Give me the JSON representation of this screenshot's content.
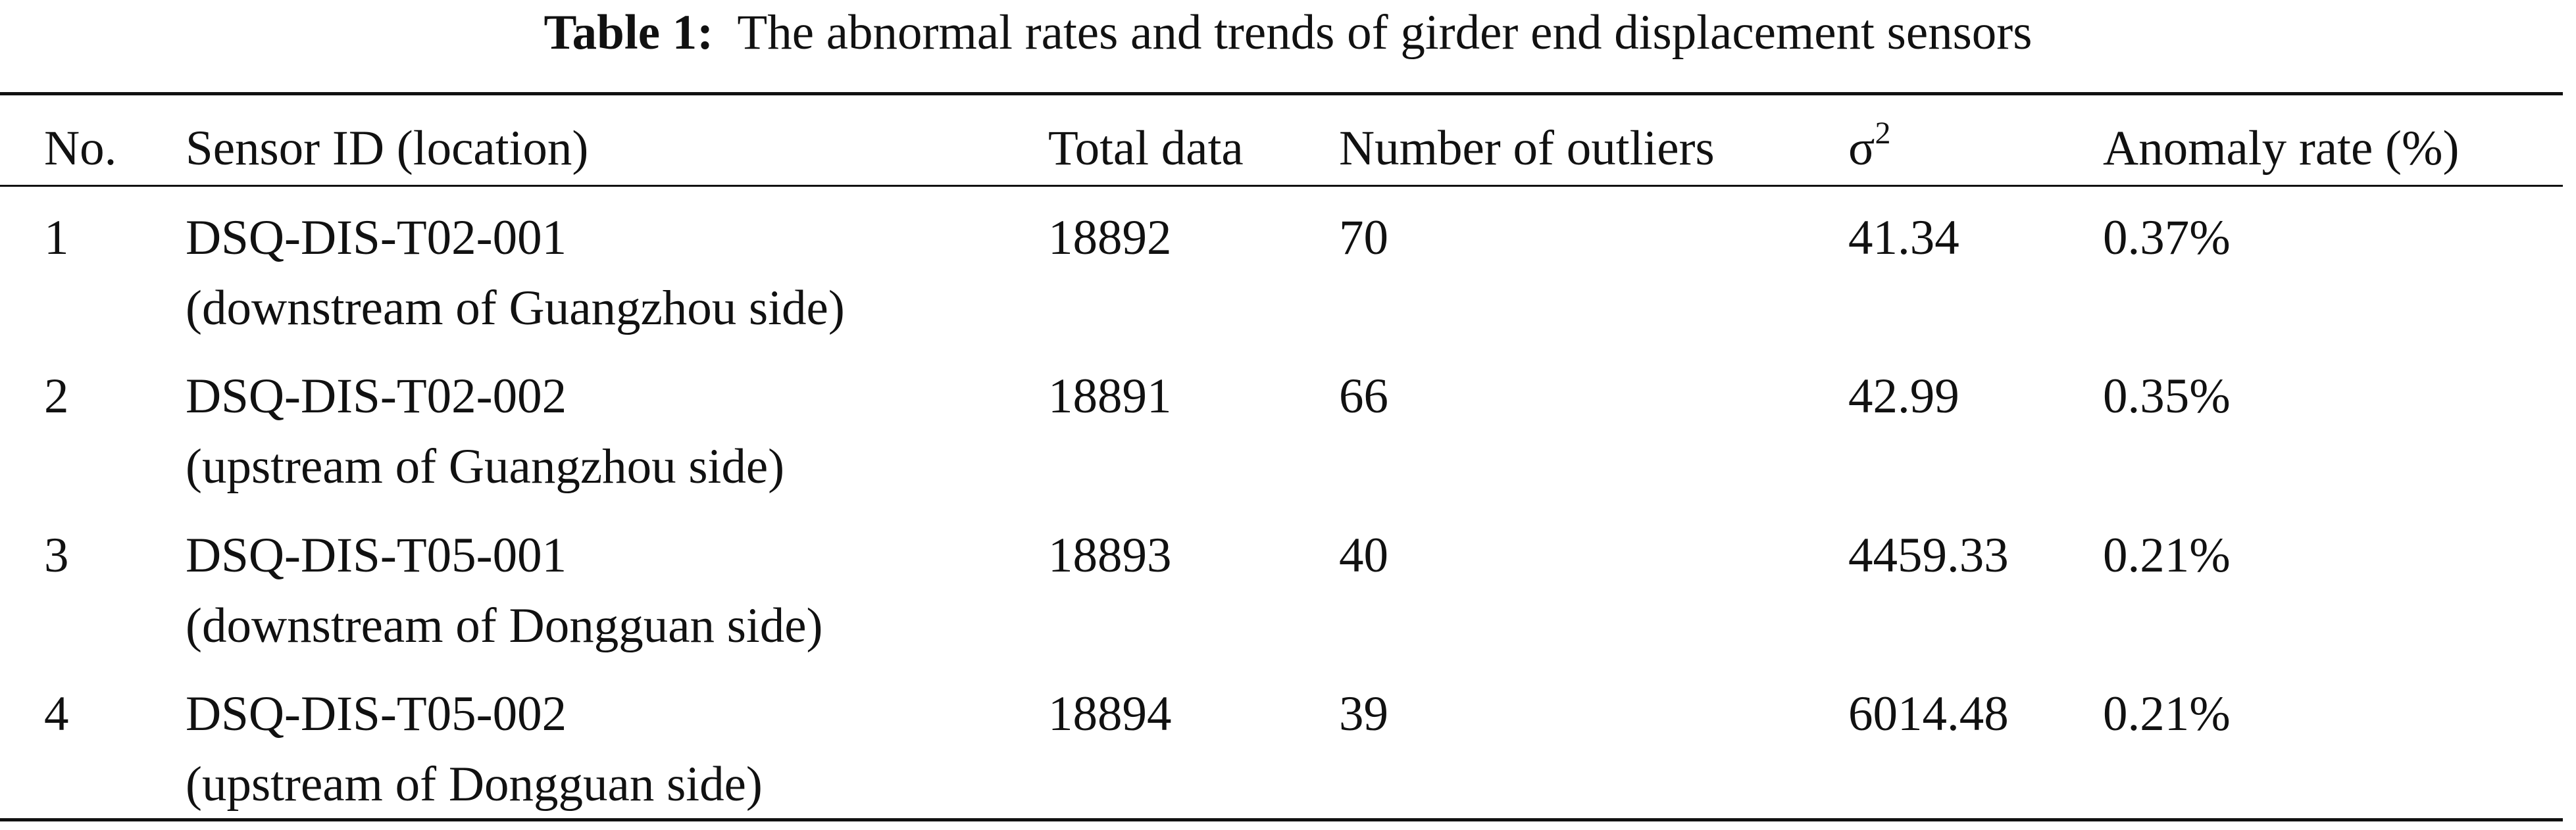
{
  "caption": {
    "label": "Table 1:",
    "title": "The abnormal rates and trends of girder end displacement sensors"
  },
  "table": {
    "header": [
      "No.",
      "Sensor ID (location)",
      "Total data",
      "Number of outliers",
      {
        "text": "σ",
        "sup": "2"
      },
      "Anomaly rate (%)"
    ],
    "rows": [
      {
        "no": "1",
        "sensor_id": "DSQ-DIS-T02-001",
        "location": "(downstream of Guangzhou side)",
        "total": "18892",
        "outliers": "70",
        "variance": "41.34",
        "rate": "0.37%"
      },
      {
        "no": "2",
        "sensor_id": "DSQ-DIS-T02-002",
        "location": "(upstream of Guangzhou side)",
        "total": "18891",
        "outliers": "66",
        "variance": "42.99",
        "rate": "0.35%"
      },
      {
        "no": "3",
        "sensor_id": "DSQ-DIS-T05-001",
        "location": "(downstream of Dongguan side)",
        "total": "18893",
        "outliers": "40",
        "variance": "4459.33",
        "rate": "0.21%"
      },
      {
        "no": "4",
        "sensor_id": "DSQ-DIS-T05-002",
        "location": "(upstream of Dongguan side)",
        "total": "18894",
        "outliers": "39",
        "variance": "6014.48",
        "rate": "0.21%"
      }
    ]
  }
}
